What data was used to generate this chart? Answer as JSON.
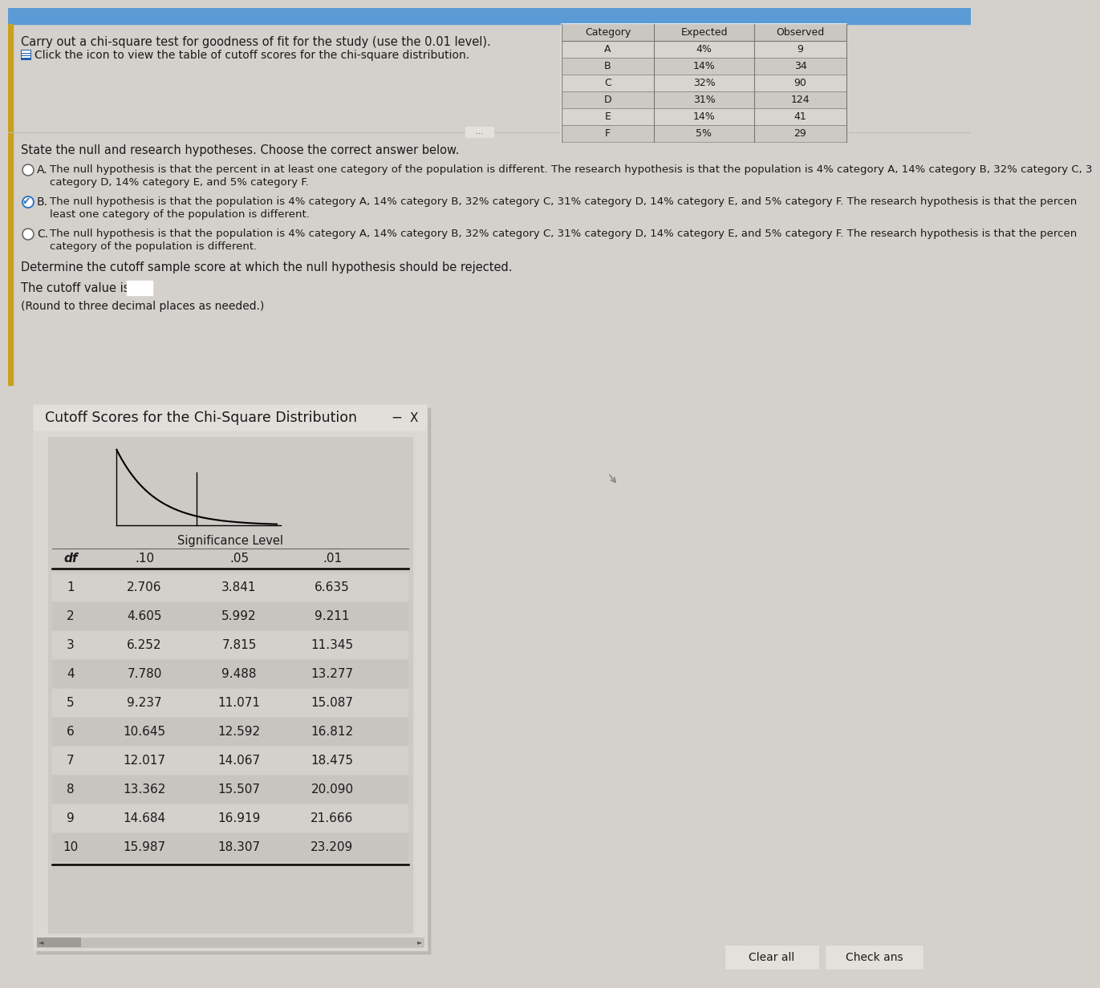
{
  "title_main": "Carry out a chi-square test for goodness of fit for the study (use the 0.01 level).",
  "click_text": "Click the icon to view the table of cutoff scores for the chi-square distribution.",
  "state_text": "State the null and research hypotheses. Choose the correct answer below.",
  "option_A_text1": "The null hypothesis is that the percent in at least one category of the population is different. The research hypothesis is that the population is 4% category A, 14% category B, 32% category C, 3",
  "option_A_text2": "category D, 14% category E, and 5% category F.",
  "option_B_text1": "The null hypothesis is that the population is 4% category A, 14% category B, 32% category C, 31% category D, 14% category E, and 5% category F. The research hypothesis is that the percen",
  "option_B_text2": "least one category of the population is different.",
  "option_C_text1": "The null hypothesis is that the population is 4% category A, 14% category B, 32% category C, 31% category D, 14% category E, and 5% category F. The research hypothesis is that the percen",
  "option_C_text2": "category of the population is different.",
  "cutoff_instruction": "Determine the cutoff sample score at which the null hypothesis should be rejected.",
  "cutoff_label": "The cutoff value is",
  "round_note": "(Round to three decimal places as needed.)",
  "popup_title": "Cutoff Scores for the Chi-Square Distribution",
  "sig_level_header": "Significance Level",
  "df_header": "df",
  "sig_10": ".10",
  "sig_05": ".05",
  "sig_01": ".01",
  "df_values": [
    1,
    2,
    3,
    4,
    5,
    6,
    7,
    8,
    9,
    10
  ],
  "values_10": [
    2.706,
    4.605,
    6.252,
    7.78,
    9.237,
    10.645,
    12.017,
    13.362,
    14.684,
    15.987
  ],
  "values_05": [
    3.841,
    5.992,
    7.815,
    9.488,
    11.071,
    12.592,
    14.067,
    15.507,
    16.919,
    18.307
  ],
  "values_01": [
    6.635,
    9.211,
    11.345,
    13.277,
    15.087,
    16.812,
    18.475,
    20.09,
    21.666,
    23.209
  ],
  "table_cat_header": "Category",
  "table_exp_header": "Expected",
  "table_obs_header": "Observed",
  "categories": [
    "A",
    "B",
    "C",
    "D",
    "E",
    "F"
  ],
  "expected": [
    "4%",
    "14%",
    "32%",
    "31%",
    "14%",
    "5%"
  ],
  "observed": [
    9,
    34,
    90,
    124,
    41,
    29
  ],
  "bg_color": "#d4d1cc",
  "top_bar_color": "#5b9bd5",
  "left_bar_color": "#c8a020",
  "icon_color": "#1e5fa8",
  "button_clear": "Clear all",
  "button_check": "Check ans",
  "text_color": "#1a1a1a",
  "table_border": "#777777",
  "popup_bg": "#dbd8d3",
  "inner_bg": "#cdc9c4",
  "row_even": "#d4d1cc",
  "row_odd": "#c8c5c0"
}
